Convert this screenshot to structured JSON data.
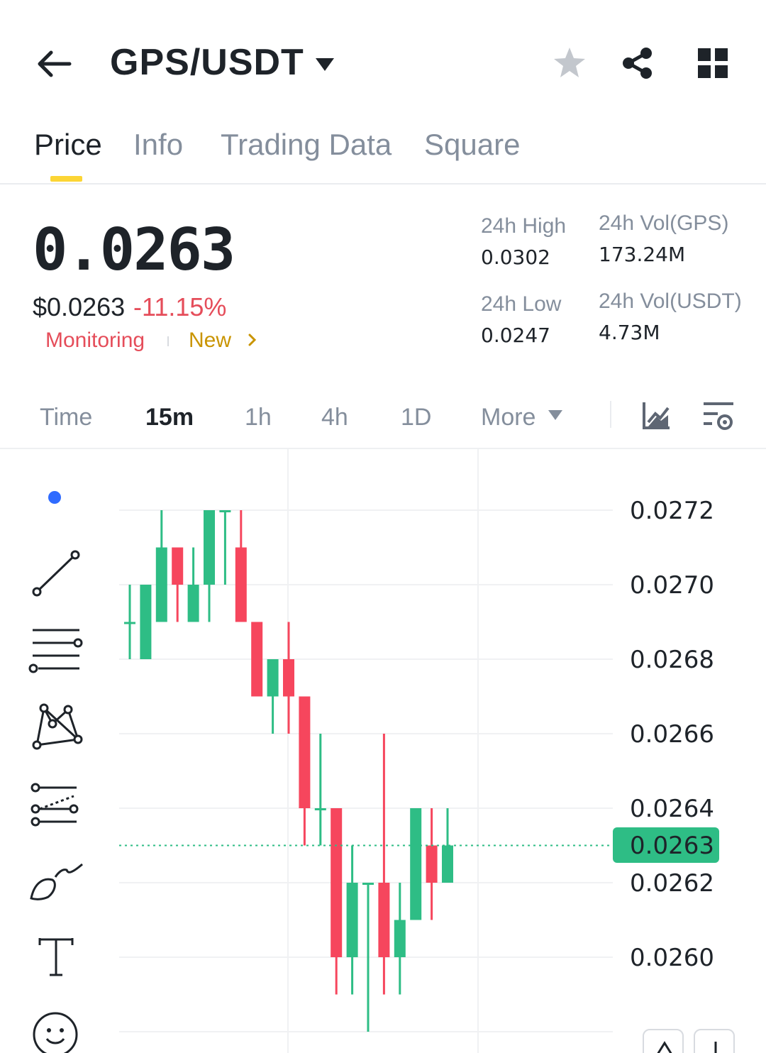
{
  "header": {
    "pair": "GPS/USDT",
    "icons": [
      "back-arrow-icon",
      "caret-down-icon",
      "star-icon",
      "share-icon",
      "grid-icon"
    ]
  },
  "tabs": [
    {
      "label": "Price",
      "active": true
    },
    {
      "label": "Info",
      "active": false
    },
    {
      "label": "Trading Data",
      "active": false
    },
    {
      "label": "Square",
      "active": false
    }
  ],
  "ticker": {
    "price": "0.0263",
    "usd_price": "$0.0263",
    "change": "-11.15%",
    "tag_monitoring": "Monitoring",
    "tag_new": "New",
    "stats": {
      "high_label": "24h High",
      "high_value": "0.0302",
      "low_label": "24h Low",
      "low_value": "0.0247",
      "vol_base_label": "24h Vol(GPS)",
      "vol_base_value": "173.24M",
      "vol_quote_label": "24h Vol(USDT)",
      "vol_quote_value": "4.73M"
    }
  },
  "intervals": {
    "items": [
      {
        "label": "Time",
        "active": false
      },
      {
        "label": "15m",
        "active": true
      },
      {
        "label": "1h",
        "active": false
      },
      {
        "label": "4h",
        "active": false
      },
      {
        "label": "1D",
        "active": false
      },
      {
        "label": "More",
        "active": false
      }
    ]
  },
  "colors": {
    "up": "#2ebd85",
    "down": "#f6465d",
    "accent": "#fcd535",
    "text": "#1e2329",
    "muted": "#848e9c"
  },
  "chart_data": {
    "type": "candlestick",
    "current_price": "0.0263",
    "y_ticks": [
      "0.0272",
      "0.0270",
      "0.0268",
      "0.0266",
      "0.0264",
      "0.0262",
      "0.0260"
    ],
    "ylim": [
      0.02578,
      0.02733
    ],
    "candles": [
      {
        "o": 0.0269,
        "c": 0.0269,
        "h": 0.027,
        "l": 0.0268
      },
      {
        "o": 0.0268,
        "c": 0.027,
        "h": 0.027,
        "l": 0.0268
      },
      {
        "o": 0.0269,
        "c": 0.0271,
        "h": 0.0272,
        "l": 0.0269
      },
      {
        "o": 0.0271,
        "c": 0.027,
        "h": 0.0271,
        "l": 0.0269
      },
      {
        "o": 0.0269,
        "c": 0.027,
        "h": 0.0271,
        "l": 0.0269
      },
      {
        "o": 0.027,
        "c": 0.0272,
        "h": 0.0272,
        "l": 0.0269
      },
      {
        "o": 0.0272,
        "c": 0.0272,
        "h": 0.0272,
        "l": 0.027
      },
      {
        "o": 0.0271,
        "c": 0.0269,
        "h": 0.0272,
        "l": 0.0269
      },
      {
        "o": 0.0269,
        "c": 0.0267,
        "h": 0.0269,
        "l": 0.0267
      },
      {
        "o": 0.0267,
        "c": 0.0268,
        "h": 0.0268,
        "l": 0.0266
      },
      {
        "o": 0.0268,
        "c": 0.0267,
        "h": 0.0269,
        "l": 0.0266
      },
      {
        "o": 0.0267,
        "c": 0.0264,
        "h": 0.0267,
        "l": 0.0263
      },
      {
        "o": 0.0264,
        "c": 0.0264,
        "h": 0.0266,
        "l": 0.0263
      },
      {
        "o": 0.0264,
        "c": 0.026,
        "h": 0.0264,
        "l": 0.0259
      },
      {
        "o": 0.026,
        "c": 0.0262,
        "h": 0.0263,
        "l": 0.0259
      },
      {
        "o": 0.0262,
        "c": 0.0262,
        "h": 0.0262,
        "l": 0.0258
      },
      {
        "o": 0.0262,
        "c": 0.026,
        "h": 0.0266,
        "l": 0.0259
      },
      {
        "o": 0.026,
        "c": 0.0261,
        "h": 0.0262,
        "l": 0.0259
      },
      {
        "o": 0.0261,
        "c": 0.0264,
        "h": 0.0264,
        "l": 0.0261
      },
      {
        "o": 0.0263,
        "c": 0.0262,
        "h": 0.0264,
        "l": 0.0261
      },
      {
        "o": 0.0262,
        "c": 0.0263,
        "h": 0.0264,
        "l": 0.0262
      }
    ]
  }
}
